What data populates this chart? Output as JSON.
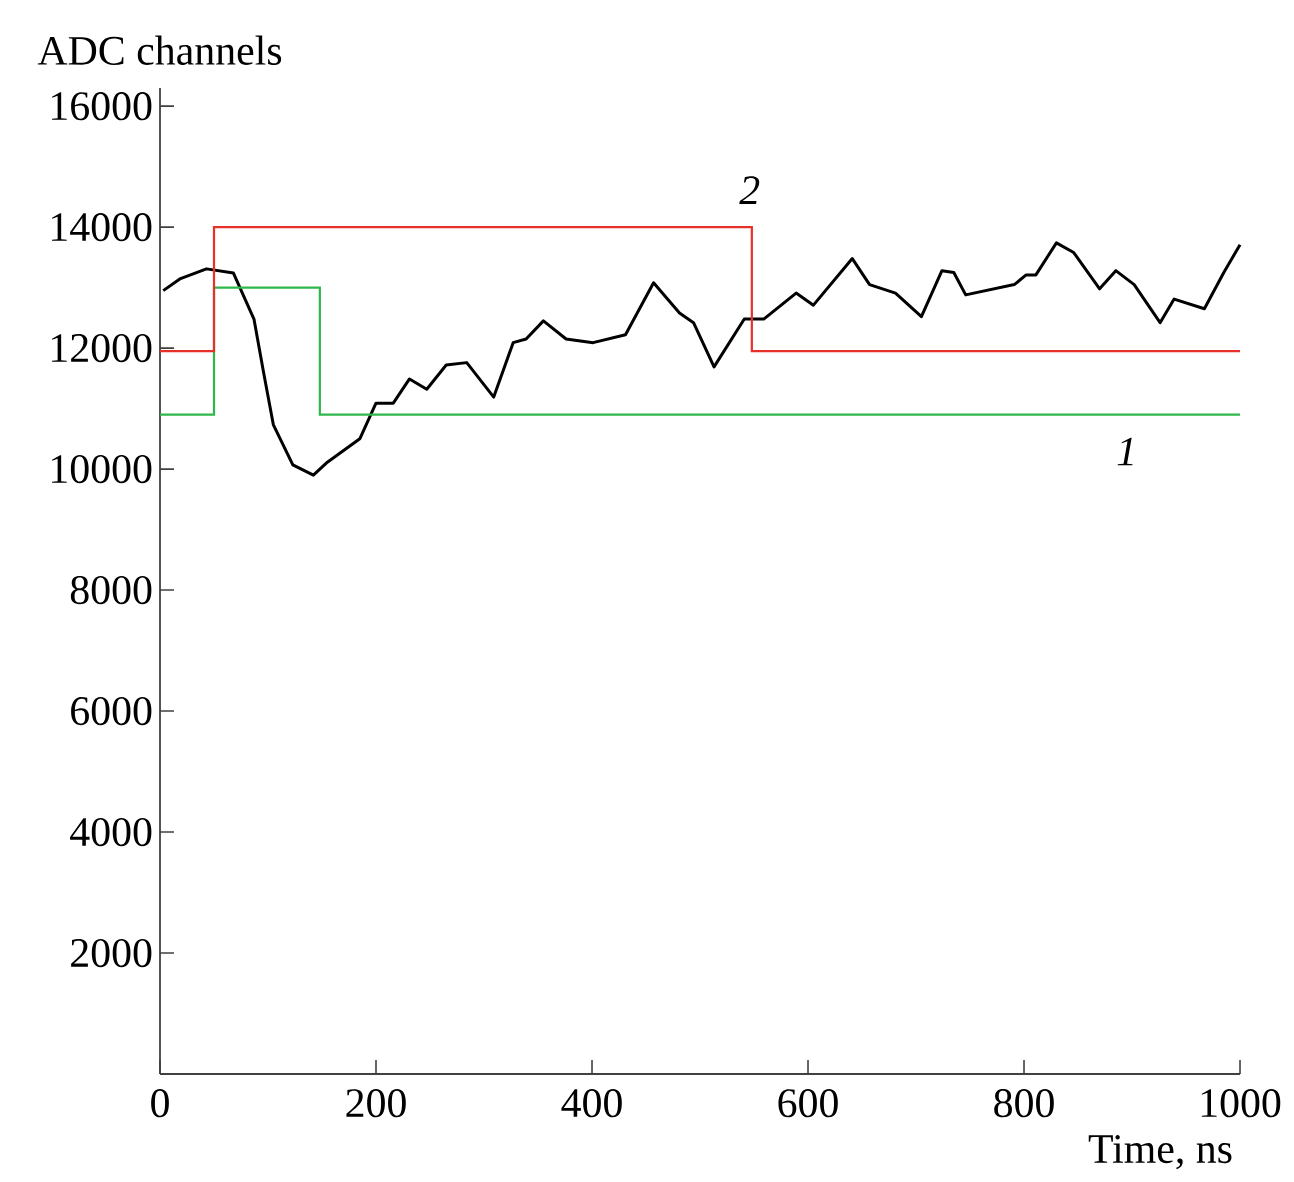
{
  "chart_data": {
    "type": "line",
    "xlabel": "Time, ns",
    "ylabel": "ADC channels",
    "xlim": [
      0,
      1000
    ],
    "ylim": [
      0,
      16300
    ],
    "xticks": [
      0,
      200,
      400,
      600,
      800,
      1000
    ],
    "yticks": [
      2000,
      4000,
      6000,
      8000,
      10000,
      12000,
      14000,
      16000
    ],
    "series": [
      {
        "type": "line",
        "color": "#000000",
        "x": [
          3,
          19,
          43,
          68,
          87,
          96,
          105,
          123,
          142,
          154,
          185,
          200,
          216,
          231,
          247,
          265,
          284,
          309,
          327,
          339,
          355,
          376,
          401,
          431,
          457,
          481,
          494,
          513,
          541,
          559,
          589,
          605,
          641,
          657,
          681,
          705,
          724,
          735,
          746,
          791,
          802,
          811,
          830,
          846,
          870,
          885,
          902,
          926,
          939,
          967,
          985,
          1000
        ],
        "values": [
          12950,
          13150,
          13310,
          13240,
          12480,
          11590,
          10730,
          10070,
          9900,
          10100,
          10500,
          11090,
          11090,
          11490,
          11320,
          11720,
          11760,
          11190,
          12090,
          12150,
          12450,
          12150,
          12090,
          12220,
          13080,
          12580,
          12420,
          11690,
          12480,
          12480,
          12910,
          12710,
          13480,
          13050,
          12910,
          12520,
          13280,
          13250,
          12880,
          13050,
          13210,
          13210,
          13740,
          13580,
          12980,
          13280,
          13050,
          12420,
          12810,
          12650,
          13250,
          13710
        ]
      },
      {
        "type": "step",
        "name": "1",
        "color": "#2eb84b",
        "x": [
          0,
          50,
          148,
          1000
        ],
        "values": [
          10900,
          13000,
          10900,
          10900
        ]
      },
      {
        "type": "step",
        "name": "2",
        "color": "#e8302a",
        "x": [
          0,
          50,
          548,
          1000
        ],
        "values": [
          11950,
          14000,
          11950,
          11950
        ]
      }
    ]
  }
}
